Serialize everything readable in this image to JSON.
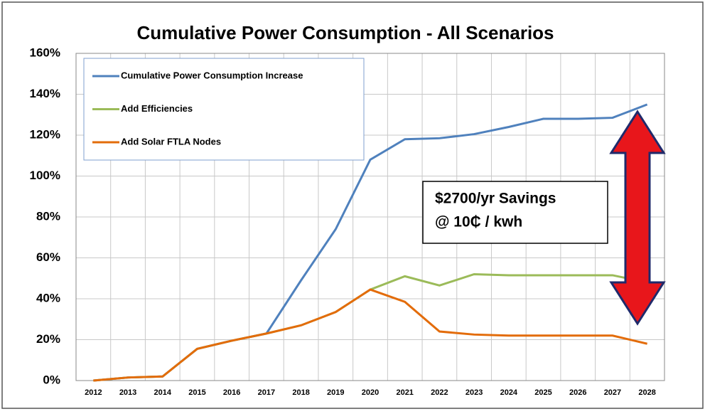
{
  "chart_data": {
    "type": "line",
    "title": "Cumulative Power Consumption - All Scenarios",
    "categories": [
      "2012",
      "2013",
      "2014",
      "2015",
      "2016",
      "2017",
      "2018",
      "2019",
      "2020",
      "2021",
      "2022",
      "2023",
      "2024",
      "2025",
      "2026",
      "2027",
      "2028"
    ],
    "series": [
      {
        "name": "Cumulative Power Consumption  Increase",
        "color": "#4f81bd",
        "values": [
          0,
          1.5,
          2,
          15.5,
          19.5,
          23,
          49,
          74,
          108,
          118,
          118.5,
          120.5,
          124,
          128,
          128,
          128.5,
          135
        ]
      },
      {
        "name": "Add Efficiencies",
        "color": "#9bbb59",
        "values": [
          0,
          1.5,
          2,
          15.5,
          19.5,
          23,
          27,
          33.5,
          44.5,
          51,
          46.5,
          52,
          51.5,
          51.5,
          51.5,
          51.5,
          48
        ]
      },
      {
        "name": "Add Solar FTLA Nodes",
        "color": "#e36c0a",
        "values": [
          0,
          1.5,
          2,
          15.5,
          19.5,
          23,
          27,
          33.5,
          44.5,
          38.5,
          24,
          22.5,
          22,
          22,
          22,
          22,
          18
        ]
      }
    ],
    "ylim": [
      0,
      160
    ],
    "yticks": [
      {
        "value": 0,
        "label": "0%"
      },
      {
        "value": 20,
        "label": "20%"
      },
      {
        "value": 40,
        "label": "40%"
      },
      {
        "value": 60,
        "label": "60%"
      },
      {
        "value": 80,
        "label": "80%"
      },
      {
        "value": 100,
        "label": "100%"
      },
      {
        "value": 120,
        "label": "120%"
      },
      {
        "value": 140,
        "label": "140%"
      },
      {
        "value": 160,
        "label": "160%"
      }
    ],
    "grid": true,
    "annotations": [
      "$2700/yr Savings",
      "@ 10₵ / kwh"
    ]
  }
}
